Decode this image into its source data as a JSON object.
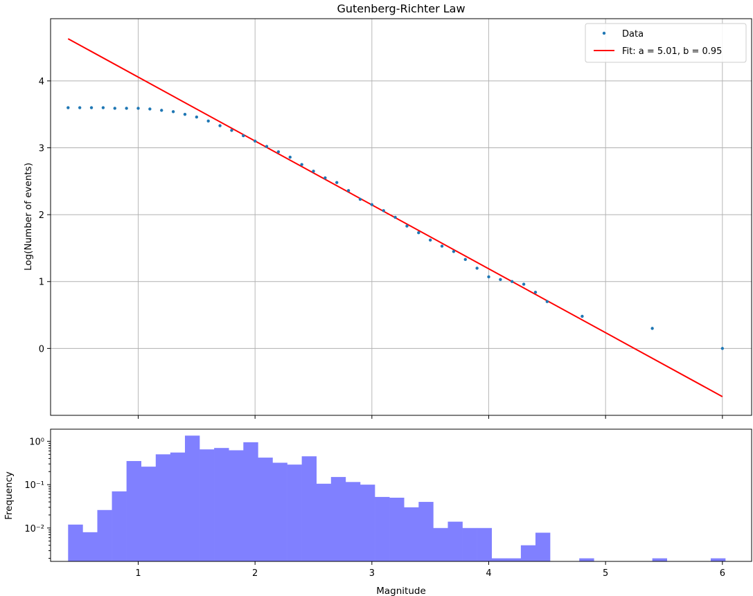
{
  "chart_data": [
    {
      "type": "scatter+line",
      "title": "Gutenberg-Richter Law",
      "xlabel": "",
      "ylabel": "Log(Number of events)",
      "xlim": [
        0.25,
        6.25
      ],
      "ylim": [
        -1.0,
        4.93
      ],
      "xticks": [
        1,
        2,
        3,
        4,
        5,
        6
      ],
      "yticks": [
        0,
        1,
        2,
        3,
        4
      ],
      "ytick_labels": [
        "0",
        "1",
        "2",
        "3",
        "4"
      ],
      "grid": true,
      "legend": {
        "placement": "top-right",
        "entries": [
          "Data",
          "Fit: a = 5.01, b = 0.95"
        ]
      },
      "series": [
        {
          "name": "Data",
          "kind": "scatter",
          "color": "#1f77b4",
          "x": [
            0.4,
            0.5,
            0.6,
            0.7,
            0.8,
            0.9,
            1.0,
            1.1,
            1.2,
            1.3,
            1.4,
            1.5,
            1.6,
            1.7,
            1.8,
            1.9,
            2.0,
            2.1,
            2.2,
            2.3,
            2.4,
            2.5,
            2.6,
            2.7,
            2.8,
            2.9,
            3.0,
            3.1,
            3.2,
            3.3,
            3.4,
            3.5,
            3.6,
            3.7,
            3.8,
            3.9,
            4.0,
            4.1,
            4.2,
            4.3,
            4.4,
            4.5,
            4.8,
            5.4,
            6.0
          ],
          "y": [
            3.6,
            3.6,
            3.6,
            3.6,
            3.59,
            3.59,
            3.59,
            3.58,
            3.56,
            3.54,
            3.5,
            3.46,
            3.4,
            3.33,
            3.26,
            3.18,
            3.1,
            3.02,
            2.94,
            2.86,
            2.75,
            2.65,
            2.55,
            2.48,
            2.36,
            2.23,
            2.15,
            2.06,
            1.96,
            1.83,
            1.73,
            1.62,
            1.53,
            1.45,
            1.33,
            1.2,
            1.07,
            1.03,
            1.0,
            0.96,
            0.84,
            0.7,
            0.48,
            0.3,
            0.0
          ]
        },
        {
          "name": "Fit: a = 5.01, b = 0.95",
          "kind": "line",
          "color": "#ff0000",
          "x": [
            0.4,
            6.0
          ],
          "y": [
            4.63,
            -0.72
          ]
        }
      ]
    },
    {
      "type": "histogram",
      "xlabel": "Magnitude",
      "ylabel": "Frequency",
      "yscale": "log",
      "xlim": [
        0.25,
        6.25
      ],
      "ylim": [
        0.0017,
        1.9
      ],
      "xticks": [
        1,
        2,
        3,
        4,
        5,
        6
      ],
      "xtick_labels": [
        "1",
        "2",
        "3",
        "4",
        "5",
        "6"
      ],
      "ytick_labels": [
        "10⁻²",
        "10⁻¹",
        "10⁰"
      ],
      "grid": false,
      "bar_color": "#8080ff",
      "bin_start": 0.4,
      "bin_width": 0.125,
      "values": [
        0.012,
        0.008,
        0.026,
        0.07,
        0.35,
        0.26,
        0.5,
        0.55,
        1.35,
        0.65,
        0.7,
        0.62,
        0.95,
        0.42,
        0.32,
        0.29,
        0.45,
        0.105,
        0.15,
        0.115,
        0.1,
        0.052,
        0.05,
        0.03,
        0.04,
        0.01,
        0.014,
        0.01,
        0.01,
        0.002,
        0.002,
        0.004,
        0.0078,
        0,
        0,
        0.002,
        0,
        0,
        0,
        0,
        0.002,
        0,
        0,
        0,
        0.002
      ]
    }
  ]
}
